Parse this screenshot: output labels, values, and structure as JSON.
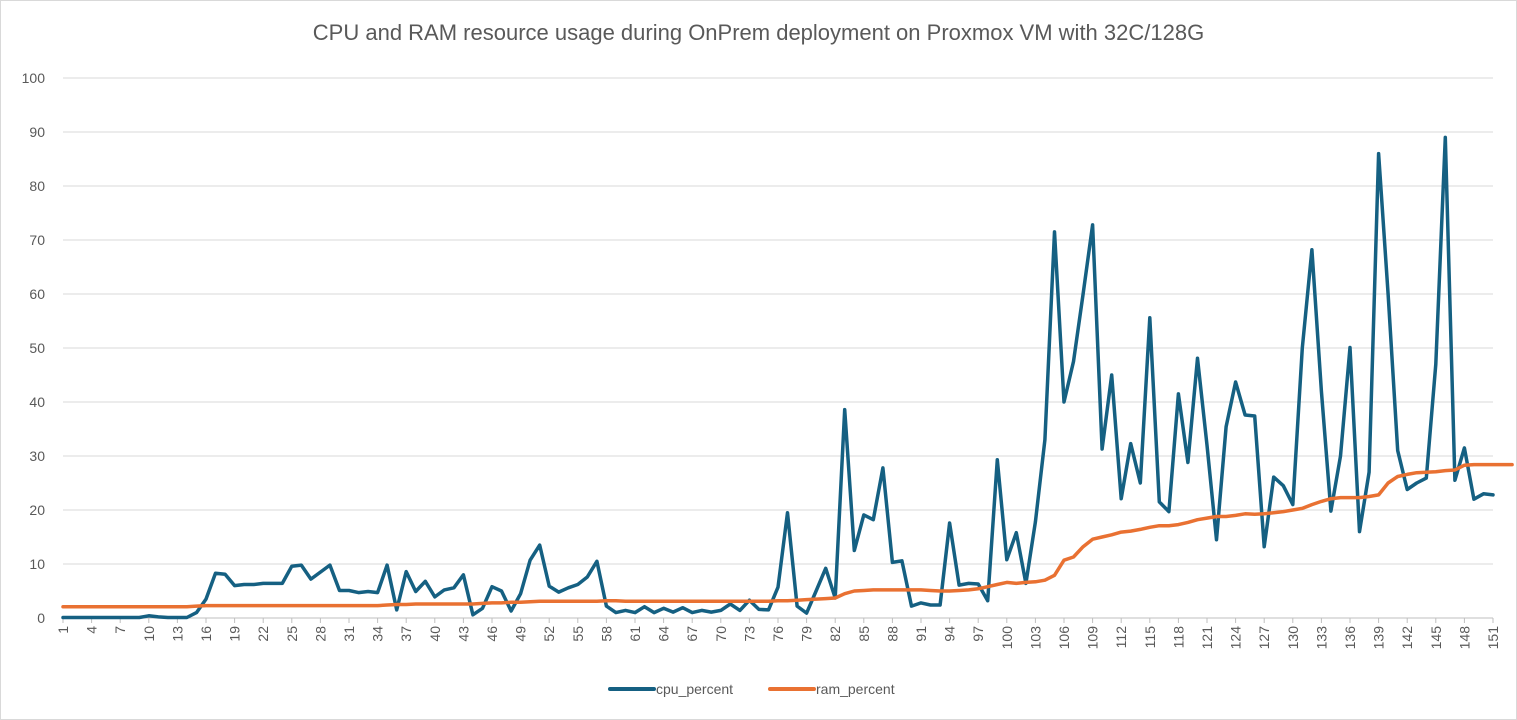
{
  "chart_data": {
    "type": "line",
    "title": "CPU and RAM resource usage during OnPrem deployment on Proxmox VM with 32C/128G",
    "xlabel": "",
    "ylabel": "",
    "ylim": [
      0,
      100
    ],
    "yticks": [
      0,
      10,
      20,
      30,
      40,
      50,
      60,
      70,
      80,
      90,
      100
    ],
    "x_range": [
      1,
      151
    ],
    "x_tick_step": 3,
    "grid": true,
    "legend_position": "bottom",
    "series": [
      {
        "name": "cpu_percent",
        "color": "#156082",
        "values": [
          0.1,
          0.1,
          0.1,
          0.1,
          0.1,
          0.1,
          0.1,
          0.1,
          0.1,
          0.4,
          0.2,
          0.1,
          0.1,
          0.1,
          1,
          3.5,
          8.3,
          8.1,
          6,
          6.2,
          6.2,
          6.4,
          6.4,
          6.4,
          9.6,
          9.8,
          7.2,
          8.5,
          9.8,
          5.1,
          5.1,
          4.7,
          4.9,
          4.7,
          9.8,
          1.5,
          8.6,
          4.9,
          6.8,
          3.9,
          5.2,
          5.6,
          8,
          0.6,
          1.8,
          5.8,
          5,
          1.3,
          4.5,
          10.7,
          13.5,
          5.9,
          4.8,
          5.6,
          6.2,
          7.6,
          10.5,
          2.2,
          1,
          1.4,
          1,
          2.1,
          1,
          1.8,
          1.1,
          1.9,
          1,
          1.4,
          1.1,
          1.4,
          2.6,
          1.4,
          3.3,
          1.6,
          1.5,
          5.7,
          19.5,
          2.2,
          0.9,
          5,
          9.2,
          3.7,
          38.6,
          12.5,
          19.1,
          18.2,
          27.8,
          10.3,
          10.6,
          2.2,
          2.8,
          2.4,
          2.4,
          17.6,
          6.1,
          6.4,
          6.3,
          3.2,
          29.3,
          10.8,
          15.8,
          6.4,
          17.8,
          33,
          71.5,
          40,
          47.5,
          60,
          72.8,
          31.3,
          45,
          22.1,
          32.3,
          25,
          55.6,
          21.5,
          19.7,
          41.5,
          28.8,
          48.1,
          32,
          14.5,
          35.4,
          43.7,
          37.6,
          37.4,
          13.2,
          26.1,
          24.5,
          21,
          50,
          68.2,
          42,
          19.8,
          30,
          50.1,
          16,
          27,
          86,
          60,
          31,
          23.8,
          25,
          25.9,
          47,
          89,
          25.5,
          31.5,
          22,
          23,
          22.8
        ]
      },
      {
        "name": "ram_percent",
        "color": "#E97132",
        "values": [
          2.1,
          2.1,
          2.1,
          2.1,
          2.1,
          2.1,
          2.1,
          2.1,
          2.1,
          2.1,
          2.1,
          2.1,
          2.1,
          2.1,
          2.2,
          2.3,
          2.3,
          2.3,
          2.3,
          2.3,
          2.3,
          2.3,
          2.3,
          2.3,
          2.3,
          2.3,
          2.3,
          2.3,
          2.3,
          2.3,
          2.3,
          2.3,
          2.3,
          2.3,
          2.4,
          2.5,
          2.5,
          2.6,
          2.6,
          2.6,
          2.6,
          2.6,
          2.6,
          2.6,
          2.7,
          2.8,
          2.8,
          2.9,
          2.9,
          3,
          3.1,
          3.1,
          3.1,
          3.1,
          3.1,
          3.1,
          3.1,
          3.2,
          3.2,
          3.1,
          3.1,
          3.1,
          3.1,
          3.1,
          3.1,
          3.1,
          3.1,
          3.1,
          3.1,
          3.1,
          3.1,
          3.1,
          3.1,
          3.1,
          3.1,
          3.2,
          3.2,
          3.3,
          3.4,
          3.5,
          3.6,
          3.7,
          4.5,
          5,
          5.1,
          5.2,
          5.2,
          5.2,
          5.2,
          5.2,
          5.2,
          5.1,
          5,
          5,
          5.1,
          5.2,
          5.4,
          5.8,
          6.2,
          6.6,
          6.4,
          6.6,
          6.7,
          7,
          7.9,
          10.7,
          11.3,
          13.2,
          14.6,
          15,
          15.4,
          15.9,
          16.1,
          16.4,
          16.8,
          17.1,
          17.1,
          17.3,
          17.7,
          18.2,
          18.5,
          18.8,
          18.8,
          19,
          19.3,
          19.2,
          19.3,
          19.5,
          19.7,
          20,
          20.3,
          21,
          21.6,
          22.1,
          22.3,
          22.3,
          22.3,
          22.5,
          22.8,
          25,
          26.2,
          26.6,
          26.9,
          27,
          27.1,
          27.3,
          27.4,
          28.3,
          28.4,
          28.4,
          28.4,
          28.4,
          28.4
        ]
      }
    ]
  }
}
